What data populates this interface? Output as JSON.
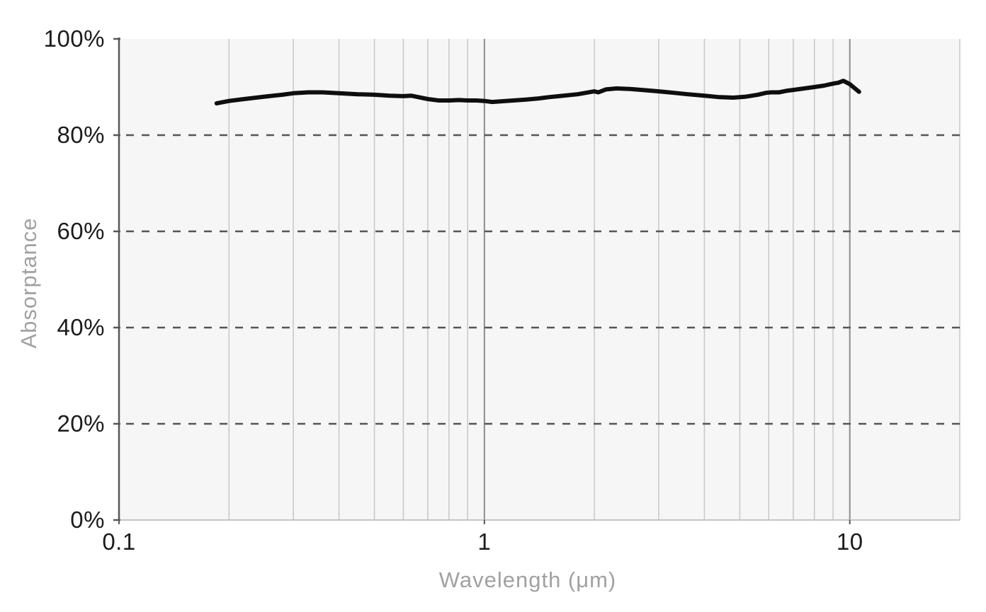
{
  "chart_data": {
    "type": "line",
    "title": "",
    "xlabel": "Wavelength (μm)",
    "ylabel": "Absorptance",
    "x_scale": "log",
    "x_domain": [
      0.1,
      20
    ],
    "y_domain": [
      0,
      100
    ],
    "x_ticks": [
      {
        "value": 0.1,
        "label": "0.1"
      },
      {
        "value": 1,
        "label": "1"
      },
      {
        "value": 10,
        "label": "10"
      }
    ],
    "y_ticks": [
      {
        "value": 0,
        "label": "0%"
      },
      {
        "value": 20,
        "label": "20%"
      },
      {
        "value": 40,
        "label": "40%"
      },
      {
        "value": 60,
        "label": "60%"
      },
      {
        "value": 80,
        "label": "80%"
      },
      {
        "value": 100,
        "label": "100%"
      }
    ],
    "x_minor_gridlines": [
      0.2,
      0.3,
      0.4,
      0.5,
      0.6,
      0.7,
      0.8,
      0.9,
      2,
      3,
      4,
      5,
      6,
      7,
      8,
      9,
      20
    ],
    "x_major_gridlines": [
      1,
      10
    ],
    "y_dashed_gridlines": [
      20,
      40,
      60,
      80
    ],
    "grid": "on",
    "legend": "none",
    "series": [
      {
        "name": "Absorptance",
        "color": "#0e0e0e",
        "points": [
          [
            0.185,
            86.6
          ],
          [
            0.2,
            87.1
          ],
          [
            0.22,
            87.5
          ],
          [
            0.25,
            88.0
          ],
          [
            0.28,
            88.4
          ],
          [
            0.3,
            88.7
          ],
          [
            0.33,
            88.9
          ],
          [
            0.36,
            88.9
          ],
          [
            0.4,
            88.7
          ],
          [
            0.45,
            88.5
          ],
          [
            0.5,
            88.4
          ],
          [
            0.55,
            88.2
          ],
          [
            0.6,
            88.1
          ],
          [
            0.63,
            88.2
          ],
          [
            0.66,
            87.9
          ],
          [
            0.7,
            87.5
          ],
          [
            0.75,
            87.2
          ],
          [
            0.8,
            87.2
          ],
          [
            0.85,
            87.3
          ],
          [
            0.9,
            87.2
          ],
          [
            0.95,
            87.2
          ],
          [
            1.0,
            87.1
          ],
          [
            1.05,
            86.9
          ],
          [
            1.1,
            87.0
          ],
          [
            1.2,
            87.2
          ],
          [
            1.3,
            87.4
          ],
          [
            1.4,
            87.6
          ],
          [
            1.5,
            87.9
          ],
          [
            1.6,
            88.1
          ],
          [
            1.8,
            88.5
          ],
          [
            2.0,
            89.1
          ],
          [
            2.05,
            88.9
          ],
          [
            2.15,
            89.5
          ],
          [
            2.3,
            89.7
          ],
          [
            2.5,
            89.6
          ],
          [
            2.7,
            89.4
          ],
          [
            3.0,
            89.1
          ],
          [
            3.3,
            88.8
          ],
          [
            3.6,
            88.5
          ],
          [
            4.0,
            88.2
          ],
          [
            4.4,
            87.9
          ],
          [
            4.8,
            87.8
          ],
          [
            5.2,
            88.0
          ],
          [
            5.6,
            88.4
          ],
          [
            5.9,
            88.8
          ],
          [
            6.1,
            88.9
          ],
          [
            6.4,
            88.9
          ],
          [
            6.7,
            89.2
          ],
          [
            7.0,
            89.4
          ],
          [
            7.5,
            89.7
          ],
          [
            8.0,
            90.0
          ],
          [
            8.5,
            90.3
          ],
          [
            9.0,
            90.7
          ],
          [
            9.3,
            90.9
          ],
          [
            9.6,
            91.3
          ],
          [
            10.0,
            90.6
          ],
          [
            10.6,
            89.0
          ]
        ]
      }
    ],
    "colors": {
      "plot_background": "#f6f6f6",
      "minor_gridline": "#c7c7c7",
      "major_gridline": "#8d8d8d",
      "axis_line": "#58585b",
      "dashed_gridline": "#555558",
      "tick_text": "#1c1c1c",
      "title_text": "#a1a1a4",
      "line": "#0e0e0e"
    }
  }
}
